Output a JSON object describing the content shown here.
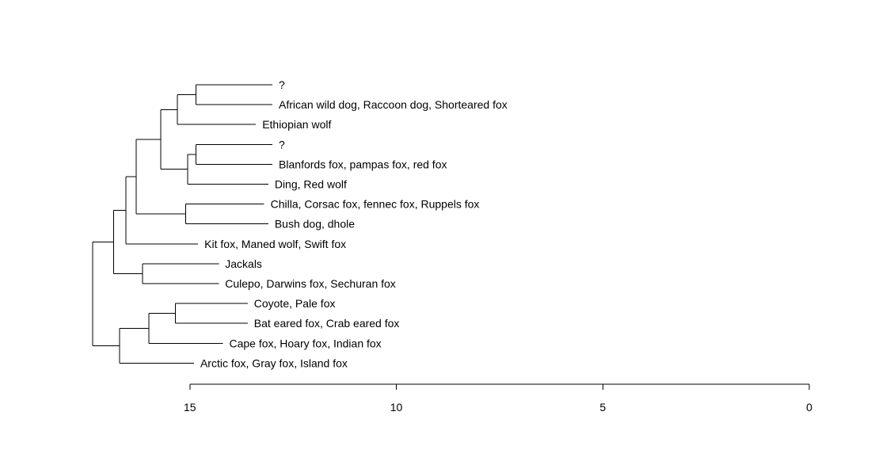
{
  "chart_data": {
    "type": "dendrogram",
    "orientation": "horizontal",
    "axis": {
      "ticks": [
        15,
        10,
        5,
        0
      ],
      "range": [
        15,
        0
      ]
    },
    "leaves": [
      {
        "id": "q1",
        "label": "?",
        "height": 13.0
      },
      {
        "id": "african",
        "label": "African wild dog, Raccoon dog, Shorteared fox",
        "height": 13.0
      },
      {
        "id": "ethiopian",
        "label": "Ethiopian wolf",
        "height": 13.4
      },
      {
        "id": "q2",
        "label": "?",
        "height": 13.0
      },
      {
        "id": "blanfords",
        "label": "Blanfords fox, pampas fox, red fox",
        "height": 13.0
      },
      {
        "id": "ding",
        "label": "Ding, Red wolf",
        "height": 13.1
      },
      {
        "id": "chilla",
        "label": "Chilla, Corsac fox, fennec fox, Ruppels fox",
        "height": 13.2
      },
      {
        "id": "bush",
        "label": "Bush dog, dhole",
        "height": 13.1
      },
      {
        "id": "kit",
        "label": "Kit fox, Maned wolf, Swift fox",
        "height": 14.8
      },
      {
        "id": "jackals",
        "label": "Jackals",
        "height": 14.3
      },
      {
        "id": "culpeo",
        "label": "Culepo, Darwins fox, Sechuran fox",
        "height": 14.3
      },
      {
        "id": "coyote",
        "label": "Coyote, Pale fox",
        "height": 13.6
      },
      {
        "id": "bateared",
        "label": "Bat eared fox, Crab eared fox",
        "height": 13.6
      },
      {
        "id": "cape",
        "label": "Cape fox, Hoary fox, Indian fox",
        "height": 14.2
      },
      {
        "id": "arctic",
        "label": "Arctic fox, Gray fox, Island fox",
        "height": 14.9
      }
    ],
    "merges": [
      {
        "id": "m1",
        "children": [
          "q1",
          "african"
        ],
        "height": 14.85
      },
      {
        "id": "m2",
        "children": [
          "m1",
          "ethiopian"
        ],
        "height": 15.3
      },
      {
        "id": "m3",
        "children": [
          "q2",
          "blanfords"
        ],
        "height": 14.85
      },
      {
        "id": "m4",
        "children": [
          "m3",
          "ding"
        ],
        "height": 15.05
      },
      {
        "id": "m5",
        "children": [
          "m2",
          "m4"
        ],
        "height": 15.7
      },
      {
        "id": "m6",
        "children": [
          "chilla",
          "bush"
        ],
        "height": 15.1
      },
      {
        "id": "m7",
        "children": [
          "m5",
          "m6"
        ],
        "height": 16.3
      },
      {
        "id": "m8",
        "children": [
          "m7",
          "kit"
        ],
        "height": 16.55
      },
      {
        "id": "m9",
        "children": [
          "jackals",
          "culpeo"
        ],
        "height": 16.15
      },
      {
        "id": "m10",
        "children": [
          "m8",
          "m9"
        ],
        "height": 16.85
      },
      {
        "id": "m11",
        "children": [
          "coyote",
          "bateared"
        ],
        "height": 15.35
      },
      {
        "id": "m12",
        "children": [
          "m11",
          "cape"
        ],
        "height": 15.99
      },
      {
        "id": "m13",
        "children": [
          "m12",
          "arctic"
        ],
        "height": 16.7
      },
      {
        "id": "root",
        "children": [
          "m10",
          "m13"
        ],
        "height": 17.35
      }
    ]
  }
}
